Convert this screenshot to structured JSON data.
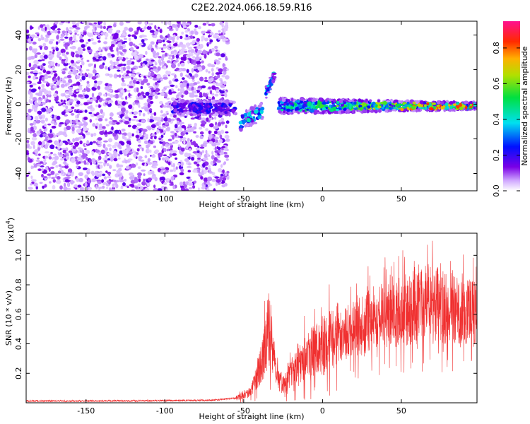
{
  "title": "C2E2.2024.066.18.59.R16",
  "colors": {
    "spectral_dot": "#6a00e8",
    "snr_line": "#f03030",
    "frame": "#000000"
  },
  "chart_data": [
    {
      "type": "heatmap",
      "xlabel": "Height of straight line (km)",
      "ylabel": "Frequency (Hz)",
      "xlim": [
        -188,
        98
      ],
      "ylim": [
        -50,
        48
      ],
      "xticks": [
        -150,
        -100,
        -50,
        0,
        50
      ],
      "yticks": [
        -40,
        -20,
        0,
        20,
        40
      ],
      "xtick_labels": [
        "-150",
        "-100",
        "-50",
        "0",
        "50"
      ],
      "ytick_labels": [
        "-40",
        "-20",
        "0",
        "20",
        "40"
      ],
      "grid": false,
      "colorbar": {
        "label": "Normalized spectral amplitude",
        "range": [
          0,
          0.95
        ],
        "ticks": [
          0.0,
          0.2,
          0.4,
          0.6,
          0.8
        ],
        "tick_labels": [
          "0.0",
          "0.2",
          "0.4",
          "0.6",
          "0.8"
        ],
        "colormap": "rainbow (white-violet-blue-cyan-green-yellow-red-magenta)"
      },
      "features": [
        {
          "name": "noise",
          "x_range": [
            -188,
            -60
          ],
          "y_range": [
            -50,
            48
          ],
          "amplitude": 0.05
        },
        {
          "name": "track_low",
          "x_range": [
            -95,
            -55
          ],
          "freq_center": -2,
          "amplitude": 0.15
        },
        {
          "name": "track_dip",
          "x_range": [
            -52,
            -38
          ],
          "freq_center": -8,
          "amplitude": 0.35
        },
        {
          "name": "track_rise",
          "x_range": [
            -36,
            -30
          ],
          "freq_center": 12,
          "amplitude": 0.35
        },
        {
          "name": "track_main",
          "x_range": [
            -28,
            98
          ],
          "freq_center": -1,
          "amplitude_max": 0.9
        }
      ]
    },
    {
      "type": "line",
      "xlabel": "Height of straight line (km)",
      "ylabel": "SNR (10 * v/v)",
      "y_multiplier": "(x10",
      "y_multiplier_exp": "4",
      "y_multiplier_close": ")",
      "xlim": [
        -188,
        98
      ],
      "ylim": [
        0,
        1.15
      ],
      "xticks": [
        -150,
        -100,
        -50,
        0,
        50
      ],
      "yticks": [
        0.2,
        0.4,
        0.6,
        0.8,
        1.0
      ],
      "xtick_labels": [
        "-150",
        "-100",
        "-50",
        "0",
        "50"
      ],
      "ytick_labels": [
        "0.2",
        "0.4",
        "0.6",
        "0.8",
        "1.0"
      ],
      "grid": false,
      "series": [
        {
          "x": [
            -188,
            -150,
            -100,
            -70,
            -55,
            -45,
            -38,
            -34,
            -32,
            -30,
            -27,
            -24,
            -20,
            -15,
            -10,
            -5,
            0,
            5,
            10,
            15,
            20,
            25,
            30,
            35,
            40,
            45,
            50,
            55,
            60,
            65,
            70,
            75,
            80,
            85,
            90,
            98
          ],
          "y": [
            0.01,
            0.01,
            0.012,
            0.015,
            0.03,
            0.08,
            0.3,
            0.5,
            0.45,
            0.25,
            0.15,
            0.12,
            0.2,
            0.28,
            0.33,
            0.35,
            0.38,
            0.42,
            0.45,
            0.48,
            0.5,
            0.52,
            0.56,
            0.58,
            0.6,
            0.6,
            0.62,
            0.64,
            0.66,
            0.66,
            0.68,
            0.66,
            0.64,
            0.63,
            0.63,
            0.6
          ]
        }
      ]
    }
  ]
}
